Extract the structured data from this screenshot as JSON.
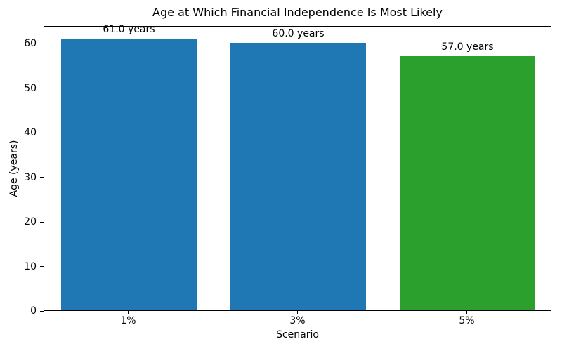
{
  "chart_data": {
    "type": "bar",
    "title": "Age at Which Financial Independence Is Most Likely",
    "xlabel": "Scenario",
    "ylabel": "Age (years)",
    "categories": [
      "1%",
      "3%",
      "5%"
    ],
    "values": [
      61.0,
      60.0,
      57.0
    ],
    "bar_labels": [
      "61.0 years",
      "60.0 years",
      "57.0 years"
    ],
    "bar_colors": [
      "#1f77b4",
      "#1f77b4",
      "#2ca02c"
    ],
    "yticks": [
      0,
      10,
      20,
      30,
      40,
      50,
      60
    ],
    "ylim": [
      0,
      64
    ],
    "xlim_categories": 3,
    "bar_width_fraction": 0.8,
    "grid": false,
    "legend_position": "none",
    "background_color": "#ffffff",
    "spine_color": "#000000"
  }
}
